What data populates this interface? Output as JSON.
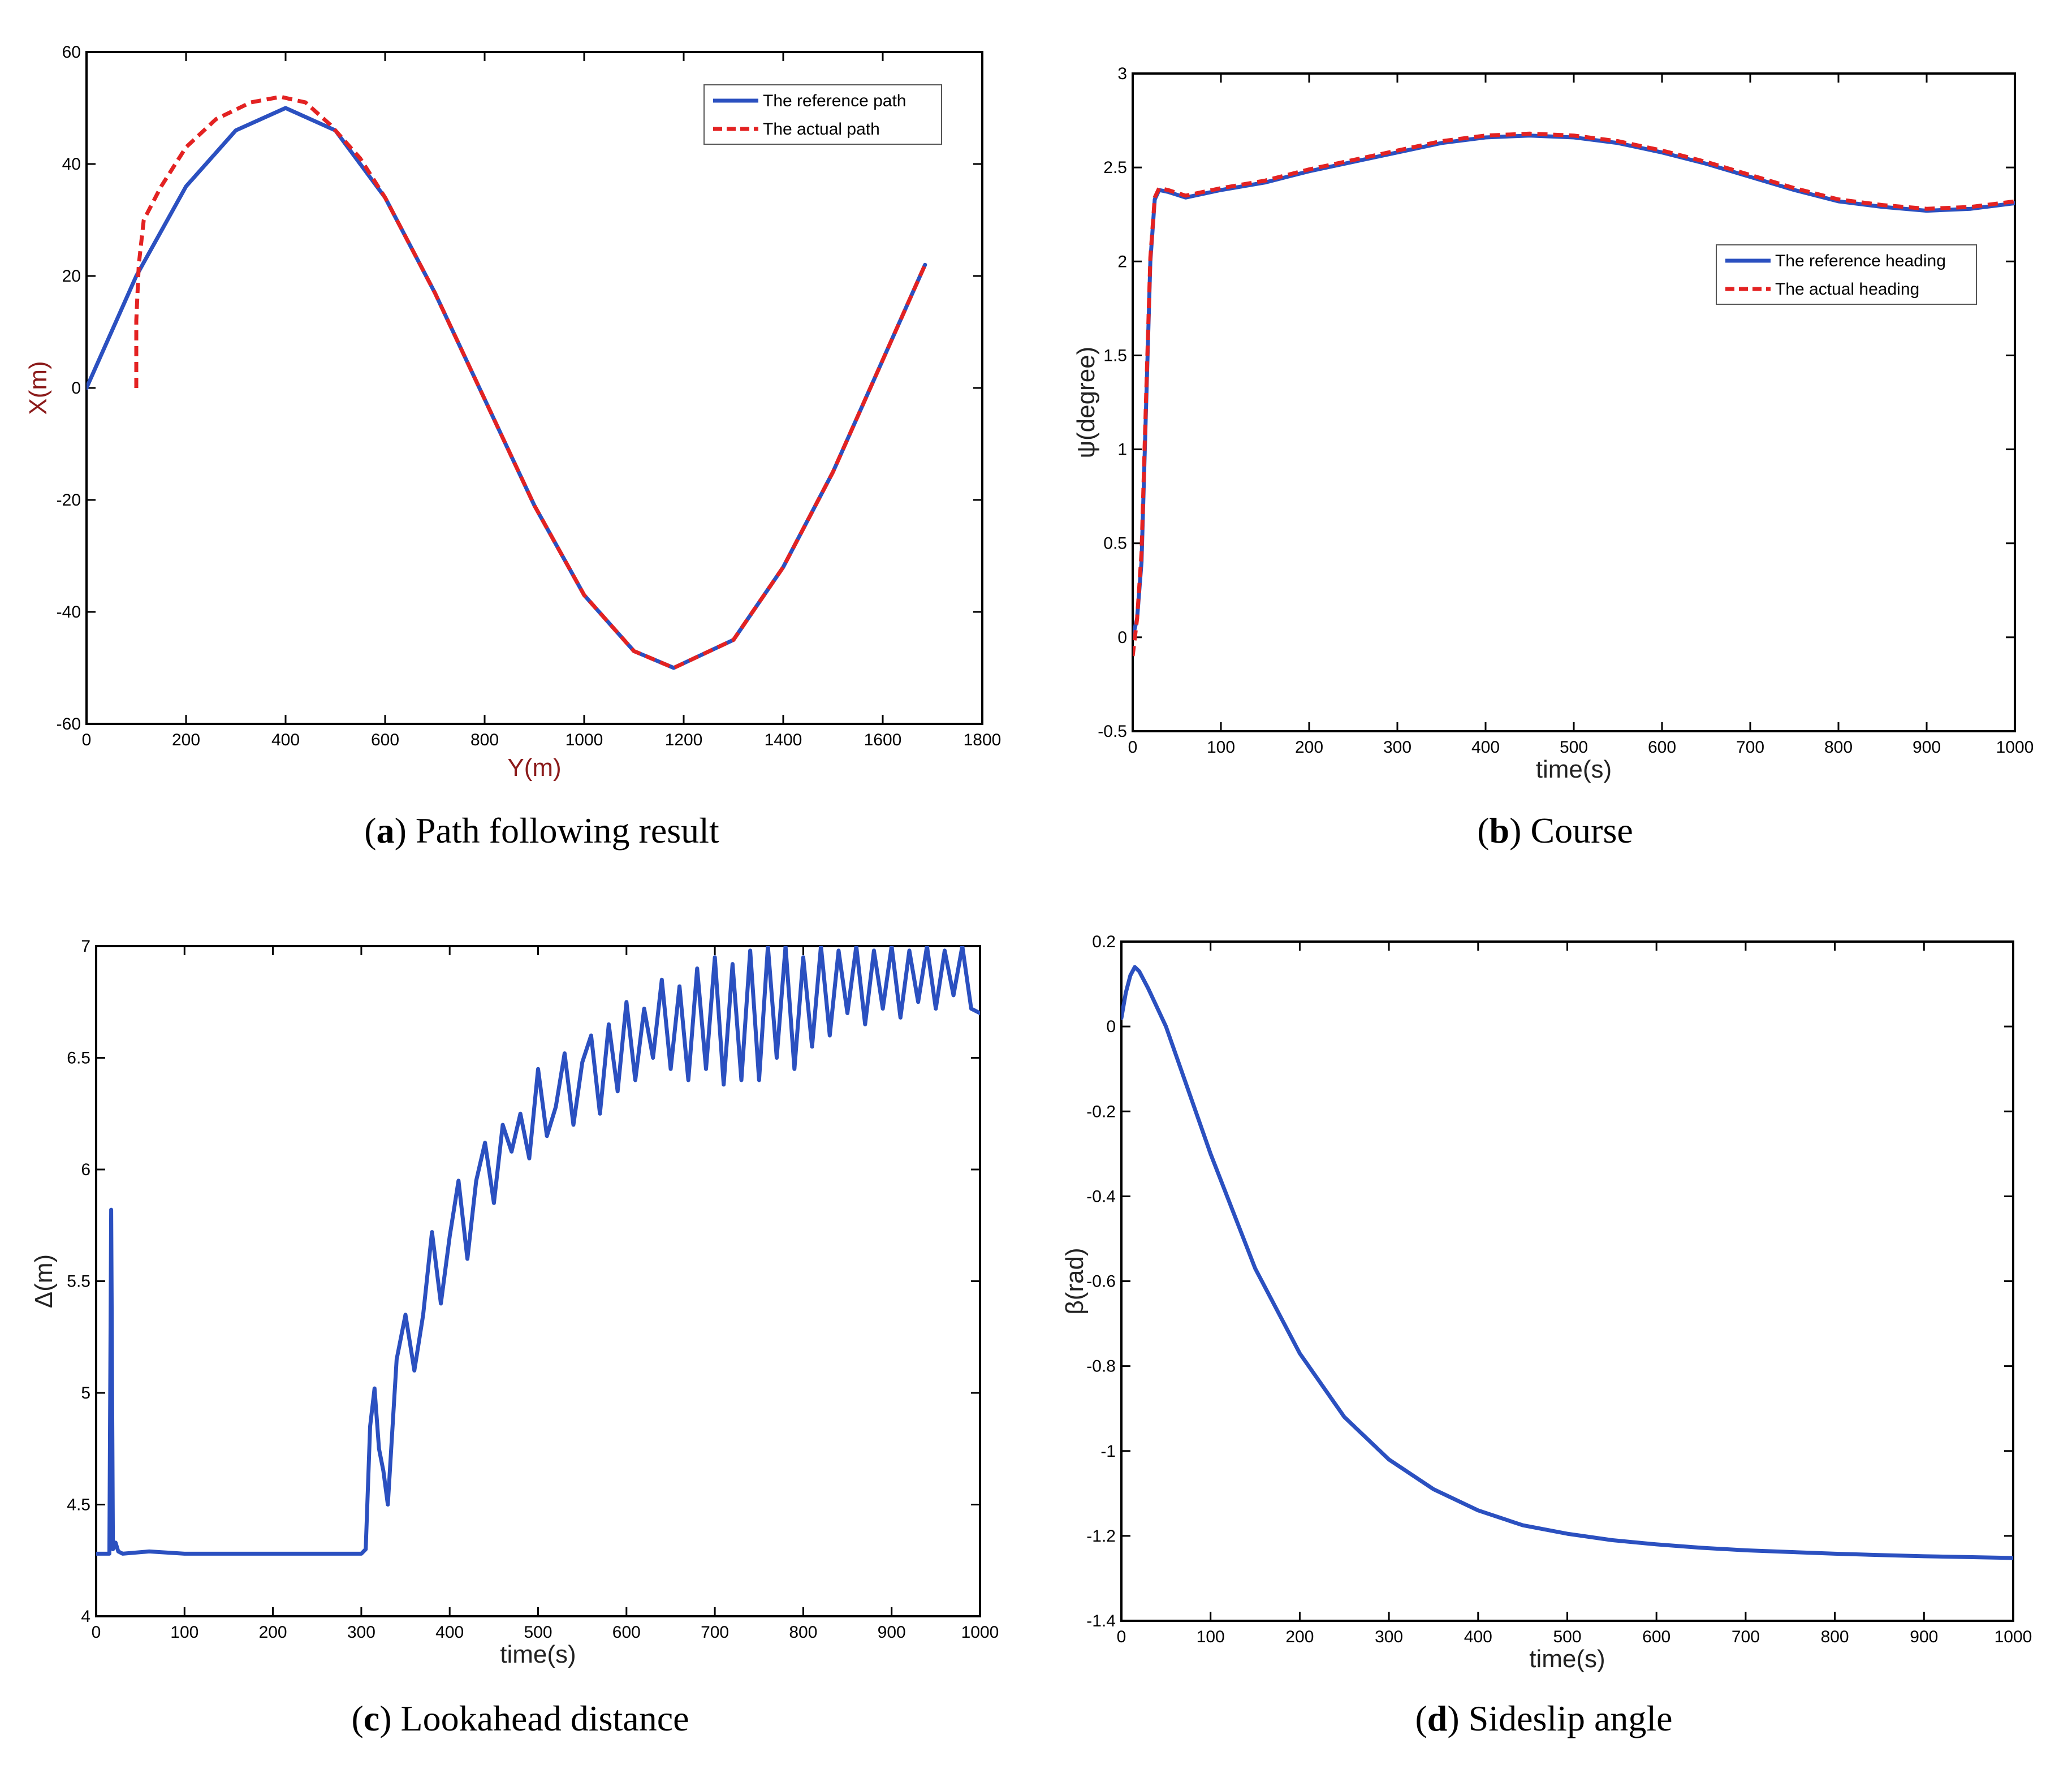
{
  "colors": {
    "reference": "#2b50c0",
    "actual": "#e32222",
    "frame": "#000000",
    "axis_label": "#8b1a1a"
  },
  "chart_data": [
    {
      "id": "a",
      "type": "line",
      "caption_letter": "a",
      "caption_text": "Path following result",
      "xlabel": "Y(m)",
      "ylabel": "X(m)",
      "xlim": [
        0,
        1800
      ],
      "ylim": [
        -60,
        60
      ],
      "xticks": [
        0,
        200,
        400,
        600,
        800,
        1000,
        1200,
        1400,
        1600,
        1800
      ],
      "yticks": [
        -60,
        -40,
        -20,
        0,
        20,
        40,
        60
      ],
      "legend": [
        "The reference path",
        "The actual path"
      ],
      "series": [
        {
          "name": "The reference path",
          "style": "solid",
          "x": [
            0,
            100,
            200,
            300,
            400,
            500,
            600,
            700,
            800,
            900,
            1000,
            1100,
            1180,
            1300,
            1400,
            1500,
            1600,
            1685
          ],
          "y": [
            0,
            20,
            36,
            46,
            50,
            46,
            34,
            17,
            -2,
            -21,
            -37,
            -47,
            -50,
            -45,
            -32,
            -15,
            5,
            22
          ]
        },
        {
          "name": "The actual path",
          "style": "dashed",
          "x": [
            100,
            100,
            105,
            115,
            150,
            200,
            260,
            330,
            390,
            440,
            490,
            550,
            600,
            700,
            800,
            900,
            1000,
            1100,
            1180,
            1300,
            1400,
            1500,
            1600,
            1685
          ],
          "y": [
            0,
            12,
            22,
            30,
            36,
            43,
            48,
            51,
            52,
            51,
            47,
            41,
            34,
            17,
            -2,
            -21,
            -37,
            -47,
            -50,
            -45,
            -32,
            -15,
            5,
            22
          ]
        }
      ]
    },
    {
      "id": "b",
      "type": "line",
      "caption_letter": "b",
      "caption_text": "Course",
      "xlabel": "time(s)",
      "ylabel": "ψ(degree)",
      "xlim": [
        0,
        1000
      ],
      "ylim": [
        -0.5,
        3
      ],
      "xticks": [
        0,
        100,
        200,
        300,
        400,
        500,
        600,
        700,
        800,
        900,
        1000
      ],
      "yticks": [
        -0.5,
        0,
        0.5,
        1,
        1.5,
        2,
        2.5,
        3
      ],
      "legend": [
        "The reference heading",
        "The actual heading"
      ],
      "series": [
        {
          "name": "The reference heading",
          "style": "solid",
          "x": [
            0,
            5,
            10,
            15,
            20,
            25,
            30,
            40,
            60,
            100,
            150,
            200,
            250,
            300,
            350,
            400,
            450,
            500,
            550,
            600,
            650,
            700,
            750,
            800,
            850,
            900,
            950,
            1000
          ],
          "y": [
            0,
            0.1,
            0.4,
            1.2,
            2.0,
            2.33,
            2.38,
            2.37,
            2.34,
            2.38,
            2.42,
            2.48,
            2.53,
            2.58,
            2.63,
            2.66,
            2.67,
            2.66,
            2.63,
            2.58,
            2.52,
            2.45,
            2.38,
            2.32,
            2.29,
            2.27,
            2.28,
            2.31
          ]
        },
        {
          "name": "The actual heading",
          "style": "dashed",
          "x": [
            0,
            5,
            10,
            15,
            20,
            25,
            30,
            40,
            60,
            100,
            150,
            200,
            250,
            300,
            350,
            400,
            450,
            500,
            550,
            600,
            650,
            700,
            750,
            800,
            850,
            900,
            950,
            1000
          ],
          "y": [
            -0.1,
            0.1,
            0.45,
            1.25,
            2.02,
            2.34,
            2.39,
            2.38,
            2.35,
            2.39,
            2.43,
            2.49,
            2.54,
            2.59,
            2.64,
            2.67,
            2.68,
            2.67,
            2.64,
            2.59,
            2.53,
            2.46,
            2.39,
            2.33,
            2.3,
            2.28,
            2.29,
            2.32
          ]
        }
      ]
    },
    {
      "id": "c",
      "type": "line",
      "caption_letter": "c",
      "caption_text": "Lookahead distance",
      "xlabel": "time(s)",
      "ylabel": "Δ(m)",
      "xlim": [
        0,
        1000
      ],
      "ylim": [
        4,
        7
      ],
      "xticks": [
        0,
        100,
        200,
        300,
        400,
        500,
        600,
        700,
        800,
        900,
        1000
      ],
      "yticks": [
        4,
        4.5,
        5,
        5.5,
        6,
        6.5,
        7
      ],
      "series": [
        {
          "name": "Lookahead distance",
          "style": "solid",
          "x": [
            0,
            15,
            17,
            19,
            22,
            25,
            30,
            60,
            100,
            200,
            300,
            305,
            310,
            315,
            320,
            325,
            330,
            340,
            350,
            360,
            370,
            380,
            390,
            400,
            410,
            420,
            430,
            440,
            450,
            460,
            470,
            480,
            490,
            500,
            510,
            520,
            530,
            540,
            550,
            560,
            570,
            580,
            590,
            600,
            610,
            620,
            630,
            640,
            650,
            660,
            670,
            680,
            690,
            700,
            710,
            720,
            730,
            740,
            750,
            760,
            770,
            780,
            790,
            800,
            810,
            820,
            830,
            840,
            850,
            860,
            870,
            880,
            890,
            900,
            910,
            920,
            930,
            940,
            950,
            960,
            970,
            980,
            990,
            1000
          ],
          "y": [
            4.28,
            4.28,
            5.82,
            4.3,
            4.33,
            4.29,
            4.28,
            4.29,
            4.28,
            4.28,
            4.28,
            4.3,
            4.85,
            5.02,
            4.75,
            4.65,
            4.5,
            5.15,
            5.35,
            5.1,
            5.35,
            5.72,
            5.4,
            5.7,
            5.95,
            5.6,
            5.95,
            6.12,
            5.85,
            6.2,
            6.08,
            6.25,
            6.05,
            6.45,
            6.15,
            6.28,
            6.52,
            6.2,
            6.48,
            6.6,
            6.25,
            6.65,
            6.35,
            6.75,
            6.4,
            6.72,
            6.5,
            6.85,
            6.45,
            6.82,
            6.4,
            6.9,
            6.45,
            6.95,
            6.38,
            6.92,
            6.4,
            6.98,
            6.4,
            7.0,
            6.5,
            7.0,
            6.45,
            6.95,
            6.55,
            7.0,
            6.6,
            6.98,
            6.7,
            7.0,
            6.65,
            6.98,
            6.72,
            7.0,
            6.68,
            6.98,
            6.75,
            7.0,
            6.72,
            6.98,
            6.78,
            7.0,
            6.72,
            6.7
          ]
        }
      ]
    },
    {
      "id": "d",
      "type": "line",
      "caption_letter": "d",
      "caption_text": "Sideslip angle",
      "xlabel": "time(s)",
      "ylabel": "β(rad)",
      "xlim": [
        0,
        1000
      ],
      "ylim": [
        -1.4,
        0.2
      ],
      "xticks": [
        0,
        100,
        200,
        300,
        400,
        500,
        600,
        700,
        800,
        900,
        1000
      ],
      "yticks": [
        -1.4,
        -1.2,
        -1,
        -0.8,
        -0.6,
        -0.4,
        -0.2,
        0,
        0.2
      ],
      "series": [
        {
          "name": "Sideslip angle",
          "style": "solid",
          "x": [
            0,
            5,
            10,
            15,
            20,
            30,
            50,
            100,
            150,
            200,
            250,
            300,
            350,
            400,
            450,
            500,
            550,
            600,
            650,
            700,
            750,
            800,
            850,
            900,
            950,
            1000
          ],
          "y": [
            0.02,
            0.08,
            0.12,
            0.14,
            0.13,
            0.09,
            0.0,
            -0.3,
            -0.57,
            -0.77,
            -0.92,
            -1.02,
            -1.09,
            -1.14,
            -1.175,
            -1.195,
            -1.21,
            -1.22,
            -1.228,
            -1.234,
            -1.238,
            -1.242,
            -1.245,
            -1.248,
            -1.25,
            -1.252
          ]
        }
      ]
    }
  ]
}
